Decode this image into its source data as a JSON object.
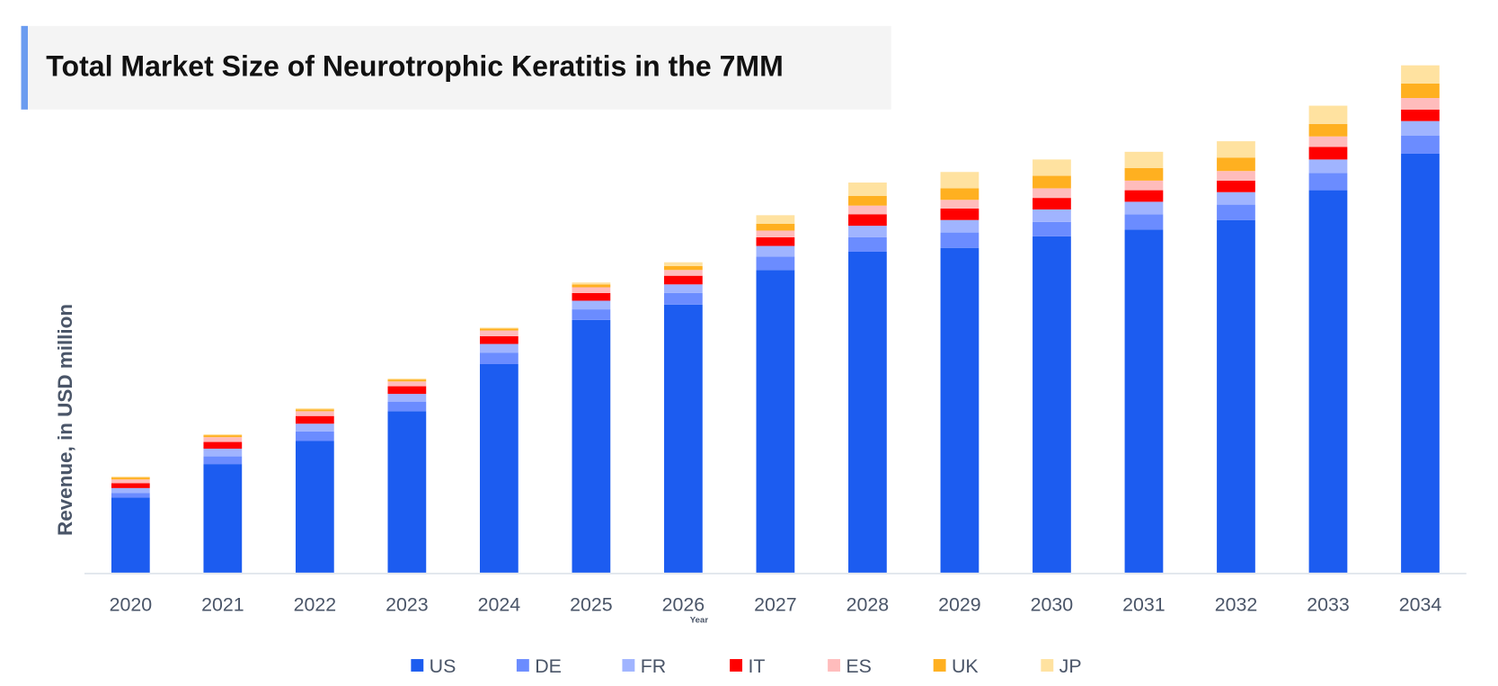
{
  "chart_data": {
    "type": "bar",
    "stacked": true,
    "title": "Total Market Size of Neurotrophic Keratitis in the 7MM",
    "xlabel": "Year",
    "ylabel": "Revenue, in USD million",
    "ylim": [
      0,
      540
    ],
    "grid": false,
    "legend_position": "bottom",
    "categories": [
      "2020",
      "2021",
      "2022",
      "2023",
      "2024",
      "2025",
      "2026",
      "2027",
      "2028",
      "2029",
      "2030",
      "2031",
      "2032",
      "2033",
      "2034"
    ],
    "series": [
      {
        "name": "US",
        "color": "#1c5cf0",
        "values": [
          78,
          113,
          137,
          168,
          217,
          263,
          279,
          315,
          334,
          338,
          350,
          357,
          367,
          398,
          436
        ]
      },
      {
        "name": "DE",
        "color": "#6b8cff",
        "values": [
          5,
          8,
          10,
          10,
          12,
          11,
          12,
          14,
          15,
          16,
          15,
          16,
          16,
          18,
          19
        ]
      },
      {
        "name": "FR",
        "color": "#a0b4ff",
        "values": [
          5,
          8,
          8,
          8,
          9,
          9,
          9,
          11,
          12,
          13,
          13,
          13,
          13,
          14,
          15
        ]
      },
      {
        "name": "IT",
        "color": "#ff0000",
        "values": [
          5,
          7,
          8,
          8,
          8,
          8,
          9,
          9,
          12,
          12,
          12,
          12,
          12,
          13,
          12
        ]
      },
      {
        "name": "ES",
        "color": "#ffbcbc",
        "values": [
          4,
          5,
          5,
          5,
          6,
          6,
          6,
          7,
          9,
          9,
          10,
          10,
          10,
          11,
          12
        ]
      },
      {
        "name": "UK",
        "color": "#ffb020",
        "values": [
          2,
          2,
          2,
          2,
          2,
          3,
          4,
          7,
          10,
          12,
          13,
          13,
          14,
          13,
          15
        ]
      },
      {
        "name": "JP",
        "color": "#ffe2a0",
        "values": [
          1,
          1,
          1,
          1,
          1,
          2,
          4,
          9,
          14,
          17,
          17,
          17,
          17,
          19,
          19
        ]
      }
    ]
  }
}
